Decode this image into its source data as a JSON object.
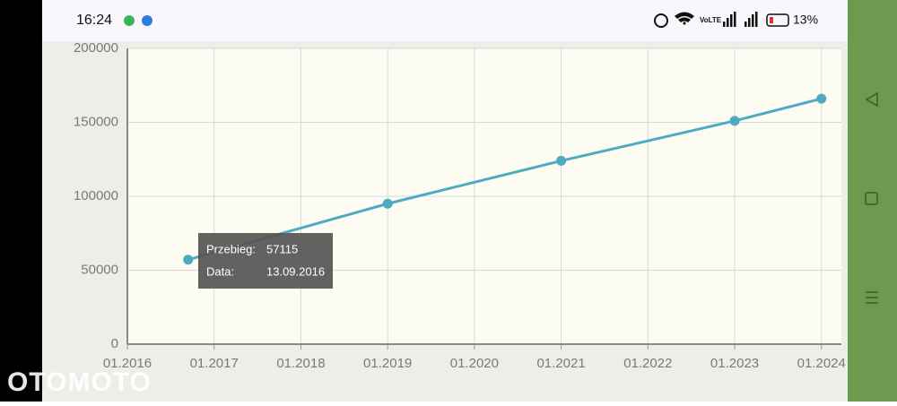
{
  "status_bar": {
    "time": "16:24",
    "battery": "13%"
  },
  "chart_data": {
    "type": "line",
    "x": [
      2016.7,
      2019.0,
      2021.0,
      2023.0,
      2024.0
    ],
    "series": [
      {
        "color": "#4eaac2",
        "values": [
          57115,
          95000,
          124000,
          151000,
          166000
        ]
      }
    ],
    "xlim": [
      2016,
      2024.23
    ],
    "xticks": [
      {
        "value": 2016,
        "label": "01.2016"
      },
      {
        "value": 2017,
        "label": "01.2017"
      },
      {
        "value": 2018,
        "label": "01.2018"
      },
      {
        "value": 2019,
        "label": "01.2019"
      },
      {
        "value": 2020,
        "label": "01.2020"
      },
      {
        "value": 2021,
        "label": "01.2021"
      },
      {
        "value": 2022,
        "label": "01.2022"
      },
      {
        "value": 2023,
        "label": "01.2023"
      },
      {
        "value": 2024,
        "label": "01.2024"
      }
    ],
    "ylim": [
      0,
      200000
    ],
    "yticks": [
      0,
      50000,
      100000,
      150000,
      200000
    ],
    "grid": true
  },
  "tooltip": {
    "value_label": "Przebieg:",
    "date_label": "Data:",
    "date": "13.09.2016"
  },
  "watermark": "OTOMOTO"
}
